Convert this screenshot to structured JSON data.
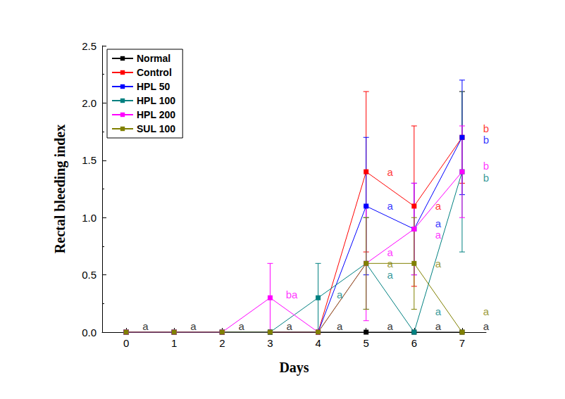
{
  "chart_data": {
    "type": "line",
    "x_label": "Days",
    "y_label": "Rectal bleeding index",
    "x": [
      0,
      1,
      2,
      3,
      4,
      5,
      6,
      7
    ],
    "xlim": [
      -0.5,
      7.5
    ],
    "xticks": [
      0,
      1,
      2,
      3,
      4,
      5,
      6,
      7
    ],
    "ylim": [
      0,
      2.5
    ],
    "yticks": [
      {
        "value": 0,
        "label": "0.0"
      },
      {
        "value": 0.5,
        "label": "0.5"
      },
      {
        "value": 1,
        "label": "1.0"
      },
      {
        "value": 1.5,
        "label": "1.5"
      },
      {
        "value": 2,
        "label": "2.0"
      },
      {
        "value": 2.5,
        "label": "2.5"
      }
    ],
    "grid": false,
    "legend": "upper left",
    "marker": "square",
    "series": [
      {
        "name": "Normal",
        "color": "#000000",
        "values": [
          0,
          0,
          0,
          0,
          0,
          0,
          0,
          0
        ],
        "errors": [
          0,
          0,
          0,
          0,
          0,
          0,
          0,
          0
        ]
      },
      {
        "name": "Control",
        "color": "#ff0000",
        "values": [
          0,
          0,
          0,
          0,
          0,
          1.4,
          1.1,
          1.7
        ],
        "errors": [
          0,
          0,
          0,
          0,
          0,
          0.7,
          0.7,
          0.4
        ]
      },
      {
        "name": "HPL 50",
        "color": "#0000ff",
        "values": [
          0,
          0,
          0,
          0,
          0,
          1.1,
          0.9,
          1.7
        ],
        "errors": [
          0,
          0,
          0,
          0,
          0,
          0.6,
          0.4,
          0.5
        ]
      },
      {
        "name": "HPL 100",
        "color": "#008080",
        "values": [
          0,
          0,
          0,
          0,
          0.3,
          0.6,
          0,
          1.4
        ],
        "errors": [
          0,
          0,
          0,
          0,
          0.3,
          0.4,
          0,
          0.7
        ]
      },
      {
        "name": "HPL 200",
        "color": "#ff00ff",
        "values": [
          0,
          0,
          0,
          0.3,
          0,
          0.6,
          0.9,
          1.4
        ],
        "errors": [
          0,
          0,
          0,
          0.3,
          0,
          0.5,
          0.4,
          0.4
        ]
      },
      {
        "name": "SUL 100",
        "color": "#808000",
        "values": [
          0,
          0,
          0,
          0,
          0,
          0.6,
          0.6,
          0
        ],
        "errors": [
          0,
          0,
          0,
          0,
          0,
          0.4,
          0.4,
          0
        ]
      }
    ],
    "annotations": [
      {
        "text": "a",
        "x": 0.4,
        "y": 0.05,
        "color": "#000000"
      },
      {
        "text": "a",
        "x": 1.4,
        "y": 0.05,
        "color": "#000000"
      },
      {
        "text": "a",
        "x": 2.4,
        "y": 0.05,
        "color": "#000000"
      },
      {
        "text": "ba",
        "x": 3.45,
        "y": 0.33,
        "color": "#ff00ff"
      },
      {
        "text": "a",
        "x": 3.4,
        "y": 0.05,
        "color": "#000000"
      },
      {
        "text": "a",
        "x": 4.45,
        "y": 0.33,
        "color": "#008080"
      },
      {
        "text": "a",
        "x": 4.45,
        "y": 0.05,
        "color": "#000000"
      },
      {
        "text": "a",
        "x": 5.5,
        "y": 1.4,
        "color": "#ff0000"
      },
      {
        "text": "a",
        "x": 5.5,
        "y": 1.1,
        "color": "#0000ff"
      },
      {
        "text": "a",
        "x": 5.5,
        "y": 0.7,
        "color": "#ff00ff"
      },
      {
        "text": "a",
        "x": 5.5,
        "y": 0.6,
        "color": "#808000"
      },
      {
        "text": "a",
        "x": 5.5,
        "y": 0.5,
        "color": "#008080"
      },
      {
        "text": "a",
        "x": 5.5,
        "y": 0.05,
        "color": "#000000"
      },
      {
        "text": "a",
        "x": 6.5,
        "y": 1.1,
        "color": "#ff0000"
      },
      {
        "text": "a",
        "x": 6.5,
        "y": 0.95,
        "color": "#0000ff"
      },
      {
        "text": "a",
        "x": 6.5,
        "y": 0.85,
        "color": "#ff00ff"
      },
      {
        "text": "a",
        "x": 6.5,
        "y": 0.6,
        "color": "#808000"
      },
      {
        "text": "a",
        "x": 6.5,
        "y": 0.18,
        "color": "#008080"
      },
      {
        "text": "a",
        "x": 6.5,
        "y": 0.05,
        "color": "#000000"
      },
      {
        "text": "b",
        "x": 7.5,
        "y": 1.78,
        "color": "#ff0000"
      },
      {
        "text": "b",
        "x": 7.5,
        "y": 1.68,
        "color": "#0000ff"
      },
      {
        "text": "b",
        "x": 7.5,
        "y": 1.45,
        "color": "#ff00ff"
      },
      {
        "text": "b",
        "x": 7.5,
        "y": 1.35,
        "color": "#008080"
      },
      {
        "text": "a",
        "x": 7.5,
        "y": 0.18,
        "color": "#808000"
      },
      {
        "text": "a",
        "x": 7.5,
        "y": 0.05,
        "color": "#000000"
      }
    ]
  }
}
